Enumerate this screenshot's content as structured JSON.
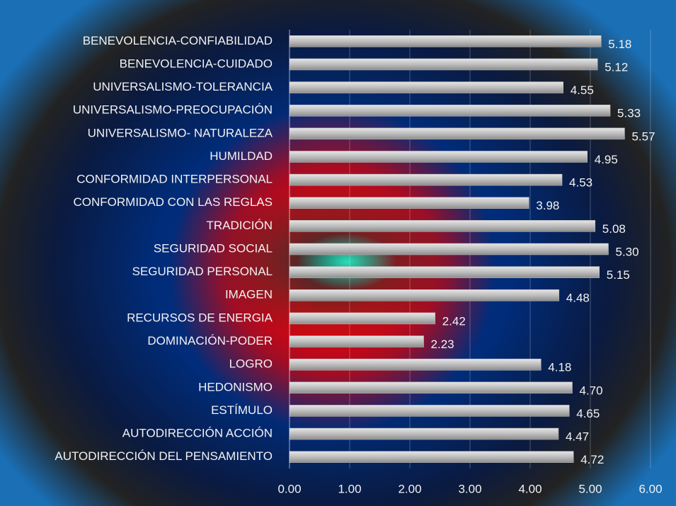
{
  "chart_data": {
    "type": "barh",
    "categories": [
      "BENEVOLENCIA-CONFIABILIDAD",
      "BENEVOLENCIA-CUIDADO",
      "UNIVERSALISMO-TOLERANCIA",
      "UNIVERSALISMO-PREOCUPACIÓN",
      "UNIVERSALISMO- NATURALEZA",
      "HUMILDAD",
      "CONFORMIDAD INTERPERSONAL",
      "CONFORMIDAD CON LAS REGLAS",
      "TRADICIÓN",
      "SEGURIDAD SOCIAL",
      "SEGURIDAD PERSONAL",
      "IMAGEN",
      "RECURSOS DE ENERGIA",
      "DOMINACIÓN-PODER",
      "LOGRO",
      "HEDONISMO",
      "ESTÍMULO",
      "AUTODIRECCIÓN ACCIÓN",
      "AUTODIRECCIÓN DEL PENSAMIENTO"
    ],
    "values": [
      5.18,
      5.12,
      4.55,
      5.33,
      5.57,
      4.95,
      4.53,
      3.98,
      5.08,
      5.3,
      5.15,
      4.48,
      2.42,
      2.23,
      4.18,
      4.7,
      4.65,
      4.47,
      4.72
    ],
    "value_labels": [
      "5.18",
      "5.12",
      "4.55",
      "5.33",
      "5.57",
      "4.95",
      "4.53",
      "3.98",
      "5.08",
      "5.30",
      "5.15",
      "4.48",
      "2.42",
      "2.23",
      "4.18",
      "4.70",
      "4.65",
      "4.47",
      "4.72"
    ],
    "color": "#bdbdbd",
    "xlim": [
      0,
      6
    ],
    "xticks": [
      {
        "value": 0,
        "label": "0.00"
      },
      {
        "value": 1,
        "label": "1.00"
      },
      {
        "value": 2,
        "label": "2.00"
      },
      {
        "value": 3,
        "label": "3.00"
      },
      {
        "value": 4,
        "label": "4.00"
      },
      {
        "value": 5,
        "label": "5.00"
      },
      {
        "value": 6,
        "label": "6.00"
      }
    ],
    "grid": true
  }
}
